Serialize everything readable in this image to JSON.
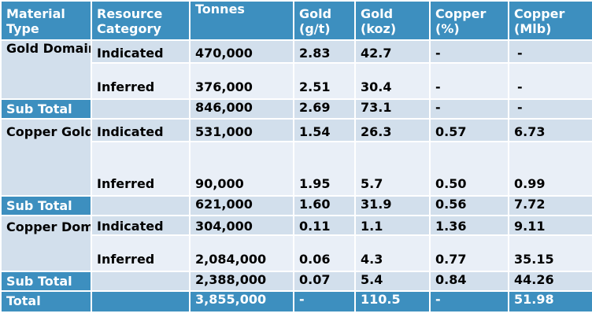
{
  "headers": {
    "material_type": "Material Type",
    "resource_category": "Resource Category",
    "tonnes": "Tonnes",
    "gold_gt": "Gold (g/t)",
    "gold_koz": "Gold (koz)",
    "copper_pct": "Copper (%)",
    "copper_mlb": "Copper (Mlb)"
  },
  "gold_domain": {
    "label": "Gold Domain",
    "indicated": {
      "category": "Indicated",
      "tonnes": "470,000",
      "gold_gt": "2.83",
      "gold_koz": "42.7",
      "copper_pct": "-",
      "copper_mlb": "-"
    },
    "inferred": {
      "category": "Inferred",
      "tonnes": "376,000",
      "gold_gt": "2.51",
      "gold_koz": "30.4",
      "copper_pct": "-",
      "copper_mlb": "-"
    },
    "subtotal": {
      "label": "Sub Total",
      "tonnes": "846,000",
      "gold_gt": "2.69",
      "gold_koz": "73.1",
      "copper_pct": "-",
      "copper_mlb": "-"
    }
  },
  "copper_gold_domain": {
    "label": "Copper Gold Domain",
    "indicated": {
      "category": "Indicated",
      "tonnes": "531,000",
      "gold_gt": "1.54",
      "gold_koz": "26.3",
      "copper_pct": "0.57",
      "copper_mlb": "6.73"
    },
    "inferred": {
      "category": "Inferred",
      "tonnes": "90,000",
      "gold_gt": "1.95",
      "gold_koz": "5.7",
      "copper_pct": "0.50",
      "copper_mlb": "0.99"
    },
    "subtotal": {
      "label": "Sub Total",
      "tonnes": "621,000",
      "gold_gt": "1.60",
      "gold_koz": "31.9",
      "copper_pct": "0.56",
      "copper_mlb": "7.72"
    }
  },
  "copper_domain": {
    "label": "Copper Domain",
    "indicated": {
      "category": "Indicated",
      "tonnes": "304,000",
      "gold_gt": "0.11",
      "gold_koz": "1.1",
      "copper_pct": "1.36",
      "copper_mlb": "9.11"
    },
    "inferred": {
      "category": "Inferred",
      "tonnes": "2,084,000",
      "gold_gt": "0.06",
      "gold_koz": "4.3",
      "copper_pct": "0.77",
      "copper_mlb": "35.15"
    },
    "subtotal": {
      "label": "Sub Total",
      "tonnes": "2,388,000",
      "gold_gt": "0.07",
      "gold_koz": "5.4",
      "copper_pct": "0.84",
      "copper_mlb": "44.26"
    }
  },
  "total": {
    "label": "Total",
    "tonnes": "3,855,000",
    "gold_gt": "-",
    "gold_koz": "110.5",
    "copper_pct": "-",
    "copper_mlb": "51.98"
  },
  "colors": {
    "header_blue": "#3d8fbf",
    "row_dark": "#d2dfec",
    "row_light": "#e9eff7",
    "text_white": "#ffffff",
    "text_black": "#000000"
  }
}
